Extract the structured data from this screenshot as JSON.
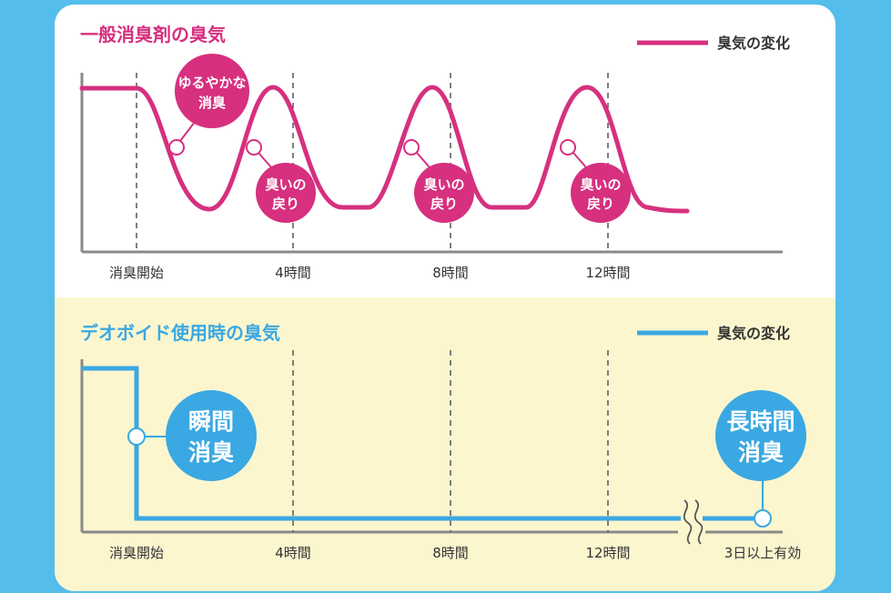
{
  "colors": {
    "background": "#54bdec",
    "card": "#ffffff",
    "bottom_panel": "#fcf6cf",
    "magenta": "#d6307f",
    "blue": "#3aa8e2",
    "axis": "#8a8a8a",
    "text": "#333333"
  },
  "top": {
    "title": "一般消臭剤の臭気",
    "legend": "臭気の変化",
    "bubble_first": [
      "ゆるやかな",
      "消臭"
    ],
    "bubble_return": [
      "臭いの",
      "戻り"
    ],
    "ticks": [
      "消臭開始",
      "4時間",
      "8時間",
      "12時間"
    ]
  },
  "bottom": {
    "title": "デオボイド使用時の臭気",
    "legend": "臭気の変化",
    "bubble_instant": [
      "瞬間",
      "消臭"
    ],
    "bubble_long": [
      "長時間",
      "消臭"
    ],
    "ticks": [
      "消臭開始",
      "4時間",
      "8時間",
      "12時間",
      "3日以上有効"
    ]
  }
}
